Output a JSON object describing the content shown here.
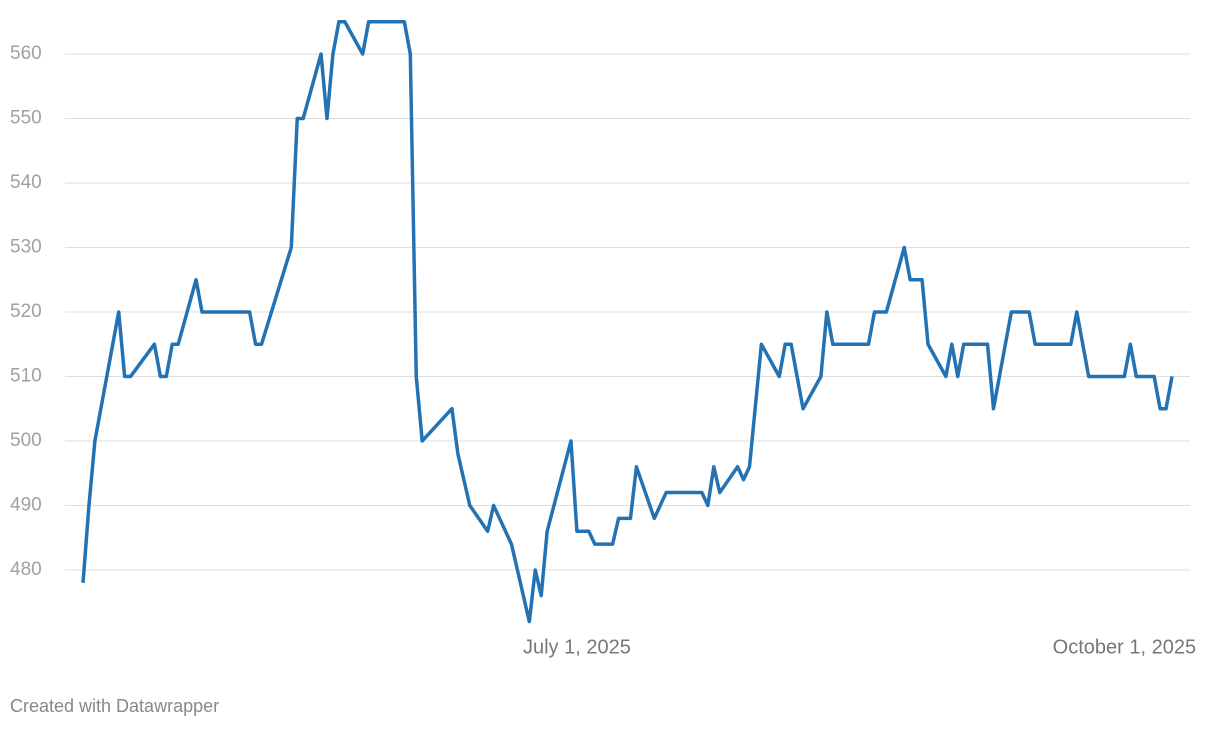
{
  "chart_data": {
    "type": "line",
    "x": [
      "2025-04-09",
      "2025-04-10",
      "2025-04-11",
      "2025-04-15",
      "2025-04-16",
      "2025-04-17",
      "2025-04-21",
      "2025-04-22",
      "2025-04-23",
      "2025-04-24",
      "2025-04-25",
      "2025-04-28",
      "2025-04-29",
      "2025-05-07",
      "2025-05-08",
      "2025-05-09",
      "2025-05-14",
      "2025-05-15",
      "2025-05-16",
      "2025-05-19",
      "2025-05-20",
      "2025-05-21",
      "2025-05-22",
      "2025-05-23",
      "2025-05-26",
      "2025-05-27",
      "2025-06-02",
      "2025-06-03",
      "2025-06-04",
      "2025-06-05",
      "2025-06-10",
      "2025-06-11",
      "2025-06-13",
      "2025-06-16",
      "2025-06-17",
      "2025-06-20",
      "2025-06-23",
      "2025-06-24",
      "2025-06-25",
      "2025-06-26",
      "2025-06-30",
      "2025-07-01",
      "2025-07-03",
      "2025-07-04",
      "2025-07-07",
      "2025-07-08",
      "2025-07-10",
      "2025-07-11",
      "2025-07-14",
      "2025-07-16",
      "2025-07-22",
      "2025-07-23",
      "2025-07-24",
      "2025-07-25",
      "2025-07-28",
      "2025-07-29",
      "2025-07-30",
      "2025-08-01",
      "2025-08-04",
      "2025-08-05",
      "2025-08-06",
      "2025-08-08",
      "2025-08-11",
      "2025-08-12",
      "2025-08-13",
      "2025-08-19",
      "2025-08-20",
      "2025-08-22",
      "2025-08-25",
      "2025-08-26",
      "2025-08-28",
      "2025-08-29",
      "2025-09-01",
      "2025-09-02",
      "2025-09-03",
      "2025-09-04",
      "2025-09-08",
      "2025-09-09",
      "2025-09-12",
      "2025-09-15",
      "2025-09-16",
      "2025-09-22",
      "2025-09-23",
      "2025-09-25",
      "2025-10-01",
      "2025-10-02",
      "2025-10-03",
      "2025-10-06",
      "2025-10-07",
      "2025-10-08",
      "2025-10-09"
    ],
    "values": [
      478,
      490,
      500,
      520,
      510,
      510,
      515,
      510,
      510,
      515,
      515,
      525,
      520,
      520,
      515,
      515,
      530,
      550,
      550,
      560,
      550,
      560,
      565,
      565,
      560,
      565,
      565,
      560,
      510,
      500,
      505,
      498,
      490,
      486,
      490,
      484,
      472,
      480,
      476,
      486,
      500,
      486,
      486,
      484,
      484,
      488,
      488,
      496,
      488,
      492,
      492,
      490,
      496,
      492,
      496,
      494,
      496,
      515,
      510,
      515,
      515,
      505,
      510,
      520,
      515,
      515,
      520,
      520,
      530,
      525,
      525,
      515,
      510,
      515,
      510,
      515,
      515,
      505,
      520,
      520,
      515,
      515,
      520,
      510,
      510,
      515,
      510,
      510,
      505,
      505,
      510
    ],
    "color": "#2272b4",
    "xlim": [
      "2025-04-09",
      "2025-10-09"
    ],
    "xticks": [
      {
        "value": "2025-07-01",
        "label": "July 1, 2025"
      },
      {
        "value": "2025-10-01",
        "label": "October 1, 2025"
      }
    ],
    "ylim": [
      471,
      566
    ],
    "yticks": [
      480,
      490,
      500,
      510,
      520,
      530,
      540,
      550,
      560
    ],
    "grid": true,
    "footer": "Created with Datawrapper"
  }
}
